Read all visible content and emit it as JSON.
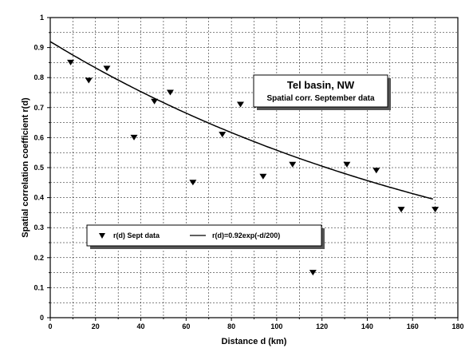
{
  "chart_data": {
    "type": "scatter",
    "xlabel": "Distance d (km)",
    "ylabel": "Spatial correlation coefficient r(d)",
    "xlim": [
      0,
      180
    ],
    "ylim": [
      0,
      1
    ],
    "x_ticks": [
      0,
      20,
      40,
      60,
      80,
      100,
      120,
      140,
      160,
      180
    ],
    "y_ticks": [
      0,
      0.1,
      0.2,
      0.3,
      0.4,
      0.5,
      0.6,
      0.7,
      0.8,
      0.9,
      1
    ],
    "x_minor_step": 10,
    "y_minor_step": 0.05,
    "grid": true,
    "grid_style": "dashed",
    "annotation": {
      "title": "Tel basin, NW",
      "subtitle": "Spatial corr. September data"
    },
    "legend": {
      "placement": "bottom-left",
      "entries": [
        "r(d) Sept data",
        "r(d)=0.92exp(-d/200)"
      ]
    },
    "series": [
      {
        "name": "r(d) Sept data",
        "kind": "scatter",
        "marker": "down-triangle",
        "color": "#000000",
        "points": [
          {
            "x": 9,
            "y": 0.85
          },
          {
            "x": 17,
            "y": 0.79
          },
          {
            "x": 25,
            "y": 0.83
          },
          {
            "x": 37,
            "y": 0.6
          },
          {
            "x": 46,
            "y": 0.72
          },
          {
            "x": 53,
            "y": 0.75
          },
          {
            "x": 63,
            "y": 0.45
          },
          {
            "x": 76,
            "y": 0.61
          },
          {
            "x": 84,
            "y": 0.71
          },
          {
            "x": 94,
            "y": 0.47
          },
          {
            "x": 107,
            "y": 0.51
          },
          {
            "x": 116,
            "y": 0.15
          },
          {
            "x": 131,
            "y": 0.51
          },
          {
            "x": 144,
            "y": 0.49
          },
          {
            "x": 155,
            "y": 0.36
          },
          {
            "x": 170,
            "y": 0.36
          }
        ]
      },
      {
        "name": "r(d)=0.92exp(-d/200)",
        "kind": "line",
        "color": "#000000",
        "amplitude": 0.92,
        "scale": 200,
        "x_range": [
          0,
          169
        ]
      }
    ]
  }
}
